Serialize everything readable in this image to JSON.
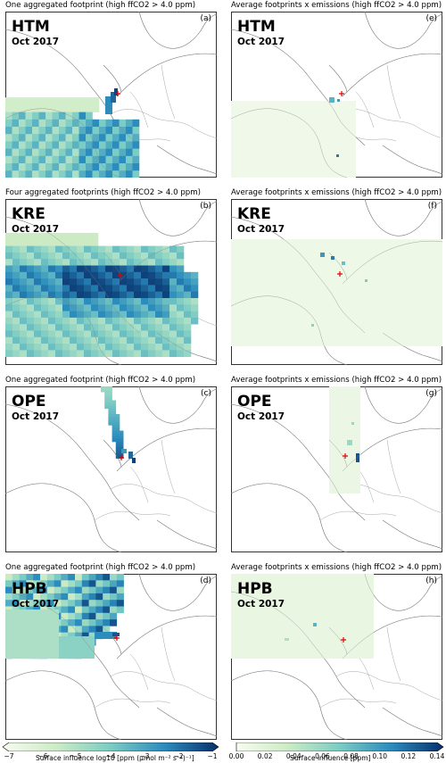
{
  "chart_data": {
    "type": "heatmap",
    "panels": [
      {
        "id": "a",
        "title": "One aggregated footprint (high ffCO2 > 4.0 ppm)",
        "station": "HTM",
        "period": "Oct 2017",
        "label": "(a)",
        "kind": "footprint"
      },
      {
        "id": "e",
        "title": "Average footprints x emissions (high ffCO2 > 4.0 ppm)",
        "station": "HTM",
        "period": "Oct 2017",
        "label": "(e)",
        "kind": "emission"
      },
      {
        "id": "b",
        "title": "Four aggregated footprints (high ffCO2 > 4.0 ppm)",
        "station": "KRE",
        "period": "Oct 2017",
        "label": "(b)",
        "kind": "footprint"
      },
      {
        "id": "f",
        "title": "Average footprints x emissions (high ffCO2 > 4.0 ppm)",
        "station": "KRE",
        "period": "Oct 2017",
        "label": "(f)",
        "kind": "emission"
      },
      {
        "id": "c",
        "title": "One aggregated footprint (high ffCO2 > 4.0 ppm)",
        "station": "OPE",
        "period": "Oct 2017",
        "label": "(c)",
        "kind": "footprint"
      },
      {
        "id": "g",
        "title": "Average footprints x emissions (high ffCO2 > 4.0 ppm)",
        "station": "OPE",
        "period": "Oct 2017",
        "label": "(g)",
        "kind": "emission"
      },
      {
        "id": "d",
        "title": "One aggregated footprint (high ffCO2 > 4.0 ppm)",
        "station": "HPB",
        "period": "Oct 2017",
        "label": "(d)",
        "kind": "footprint"
      },
      {
        "id": "h",
        "title": "Average footprints x emissions (high ffCO2 > 4.0 ppm)",
        "station": "HPB",
        "period": "Oct 2017",
        "label": "(h)",
        "kind": "emission"
      }
    ],
    "colorbars": [
      {
        "label": "Surface influence log10 [ppm (µmol m⁻² s⁻¹)⁻¹]",
        "range": [
          -7,
          -1
        ],
        "ticks": [
          "−7",
          "−6",
          "−5",
          "−4",
          "−3",
          "−2",
          "−1"
        ],
        "colors": [
          "#f7fcf0",
          "#ccebc5",
          "#7bccc4",
          "#2b8cbe",
          "#08306b"
        ]
      },
      {
        "label": "Surface influence [ppm]",
        "range": [
          0,
          0.14
        ],
        "ticks": [
          "0.00",
          "0.02",
          "0.04",
          "0.06",
          "0.08",
          "0.10",
          "0.12",
          "0.14"
        ],
        "colors": [
          "#f7fcf0",
          "#ccebc5",
          "#7bccc4",
          "#2b8cbe",
          "#08306b"
        ]
      }
    ]
  }
}
